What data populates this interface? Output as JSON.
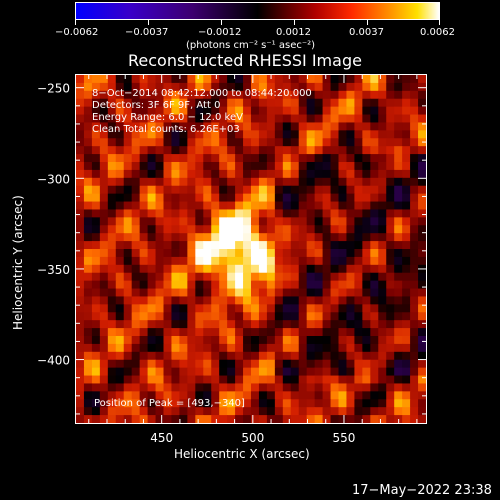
{
  "colorbar": {
    "ticks": [
      "−0.0062",
      "−0.0037",
      "−0.0012",
      "0.0012",
      "0.0037",
      "0.0062"
    ],
    "unit_label": "(photons cm⁻² s⁻¹ asec⁻²)"
  },
  "title": "Reconstructed RHESSI Image",
  "info_lines": [
    "8−Oct−2014 08:42:12.000 to 08:44:20.000",
    "Detectors: 3F 6F 9F, Att 0",
    "Energy Range: 6.0 − 12.0 keV",
    "Clean    Total counts: 6.26E+03"
  ],
  "peak_label": "Position of Peak = [493,−340]",
  "footer_timestamp": "17−May−2022 23:38",
  "chart_data": {
    "type": "heatmap",
    "title": "Reconstructed RHESSI Image",
    "xlabel": "Heliocentric X (arcsec)",
    "ylabel": "Heliocentric Y (arcsec)",
    "xlim": [
      403,
      595
    ],
    "ylim": [
      -435,
      -243
    ],
    "x_ticks": [
      450,
      500,
      550
    ],
    "x_tick_labels": [
      "450",
      "500",
      "550"
    ],
    "y_ticks": [
      -250,
      -300,
      -350,
      -400
    ],
    "y_tick_labels": [
      "−250",
      "−300",
      "−350",
      "−400"
    ],
    "colorbar_range": [
      -0.0062,
      0.0062
    ],
    "peak": {
      "x": 493,
      "y": -340
    },
    "colors": {
      "low": "#0000ff",
      "mid": "#000000",
      "high": "#ffffff"
    }
  }
}
